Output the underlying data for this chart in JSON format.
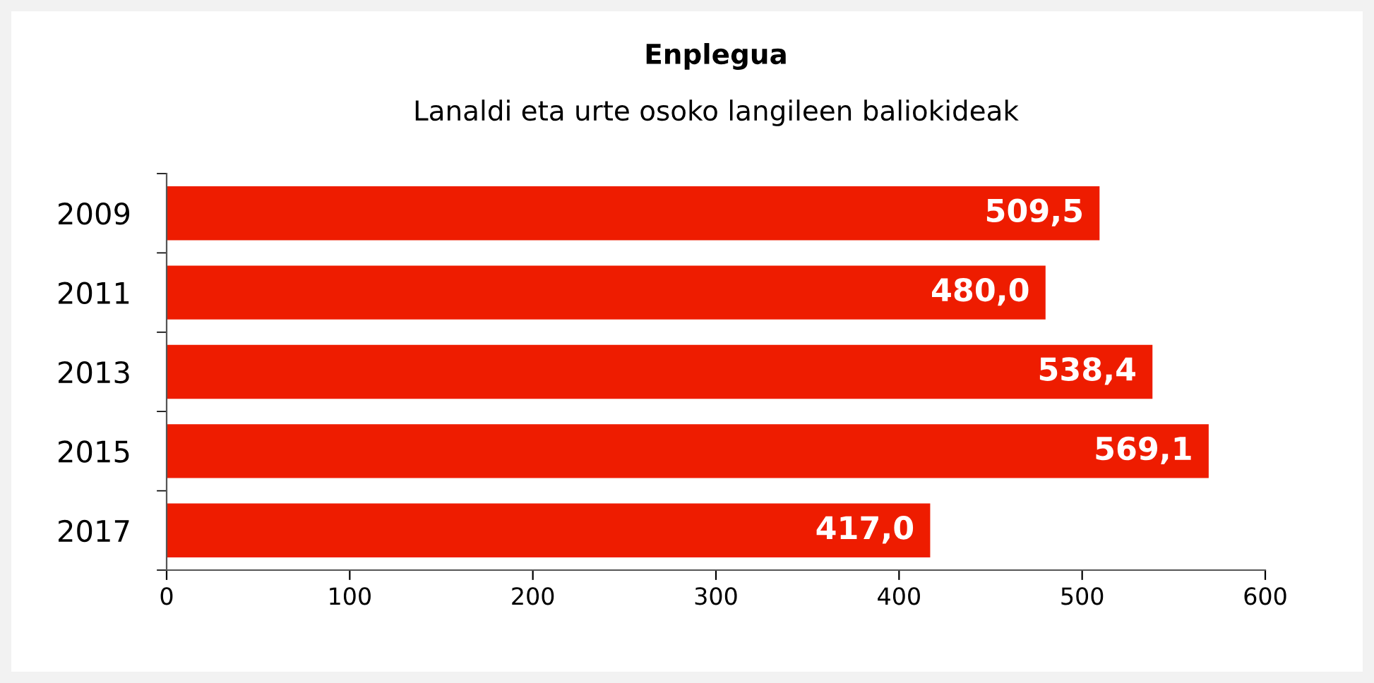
{
  "chart_data": {
    "type": "bar",
    "orientation": "horizontal",
    "title": "Enplegua",
    "subtitle": "Lanaldi eta urte osoko langileen baliokideak",
    "categories": [
      "2009",
      "2011",
      "2013",
      "2015",
      "2017"
    ],
    "values": [
      509.5,
      480.0,
      538.4,
      569.1,
      417.0
    ],
    "value_labels": [
      "509,5",
      "480,0",
      "538,4",
      "569,1",
      "417,0"
    ],
    "color": "#ee1c00",
    "xlim": [
      0,
      600
    ],
    "xticks": [
      0,
      100,
      200,
      300,
      400,
      500,
      600
    ],
    "grid": false,
    "legend": false
  }
}
